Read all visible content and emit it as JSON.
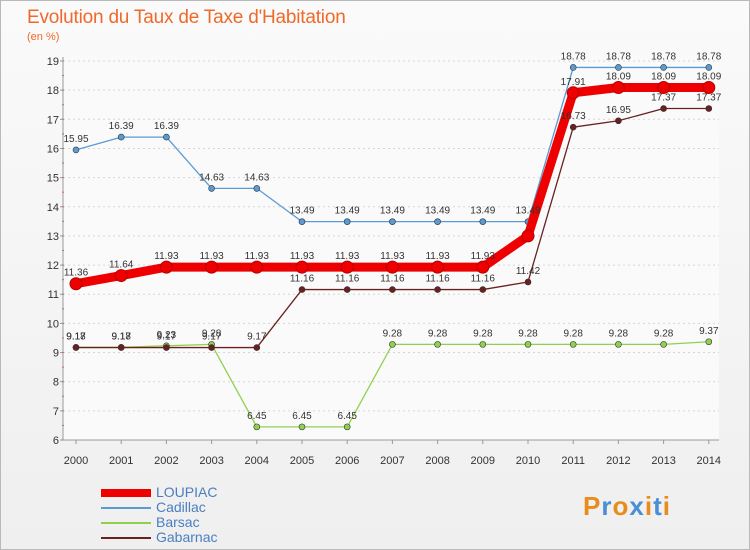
{
  "title": "Evolution du Taux de Taxe d'Habitation",
  "subtitle": "(en %)",
  "logo": {
    "text": "Proxiti",
    "letters": [
      "P",
      "r",
      "o",
      "x",
      "i",
      "t",
      "i"
    ],
    "colors": [
      "#e88c1c",
      "#4a8fd4",
      "#e88c1c",
      "#4a8fd4",
      "#e88c1c",
      "#4a8fd4",
      "#e88c1c"
    ]
  },
  "chart_data": {
    "type": "line",
    "title": "Evolution du Taux de Taxe d'Habitation",
    "ylabel": "(en %)",
    "x": [
      "2000",
      "2001",
      "2002",
      "2003",
      "2004",
      "2005",
      "2006",
      "2007",
      "2008",
      "2009",
      "2010",
      "2011",
      "2012",
      "2013",
      "2014"
    ],
    "ylim": [
      6,
      19
    ],
    "yticks": [
      6,
      7,
      8,
      9,
      10,
      11,
      12,
      13,
      14,
      15,
      16,
      17,
      18,
      19
    ],
    "grid": "horizontal-dashed",
    "series": [
      {
        "name": "LOUPIAC",
        "color": "#ee0000",
        "values": [
          11.36,
          11.64,
          11.93,
          11.93,
          11.93,
          11.93,
          11.93,
          11.93,
          11.93,
          11.93,
          13.0,
          17.91,
          18.09,
          18.09,
          18.09
        ],
        "labels": [
          "11.36",
          "11.64",
          "11.93",
          "11.93",
          "11.93",
          "11.93",
          "11.93",
          "11.93",
          "11.93",
          "11.93",
          "",
          "17.91",
          "18.09",
          "18.09",
          "18.09"
        ]
      },
      {
        "name": "Cadillac",
        "color": "#5b9bd5",
        "values": [
          15.95,
          16.39,
          16.39,
          14.63,
          14.63,
          13.49,
          13.49,
          13.49,
          13.49,
          13.49,
          13.49,
          18.78,
          18.78,
          18.78,
          18.78
        ],
        "labels": [
          "15.95",
          "16.39",
          "16.39",
          "14.63",
          "14.63",
          "13.49",
          "13.49",
          "13.49",
          "13.49",
          "13.49",
          "13.49",
          "18.78",
          "18.78",
          "18.78",
          "18.78"
        ]
      },
      {
        "name": "Barsac",
        "color": "#8fd14f",
        "values": [
          9.18,
          9.18,
          9.23,
          9.28,
          6.45,
          6.45,
          6.45,
          9.28,
          9.28,
          9.28,
          9.28,
          9.28,
          9.28,
          9.28,
          9.37
        ],
        "labels": [
          "9.18",
          "9.18",
          "9.23",
          "9.28",
          "6.45",
          "6.45",
          "6.45",
          "9.28",
          "9.28",
          "9.28",
          "9.28",
          "9.28",
          "9.28",
          "9.28",
          "9.37"
        ]
      },
      {
        "name": "Gabarnac",
        "color": "#6b2020",
        "values": [
          9.17,
          9.17,
          9.17,
          9.17,
          9.17,
          11.16,
          11.16,
          11.16,
          11.16,
          11.16,
          11.42,
          16.73,
          16.95,
          17.37,
          17.37
        ],
        "labels": [
          "9.17",
          "9.17",
          "9.17",
          "9.17",
          "9.17",
          "11.16",
          "11.16",
          "11.16",
          "11.16",
          "11.16",
          "11.42",
          "16.73",
          "16.95",
          "17.37",
          "17.37"
        ]
      }
    ]
  }
}
